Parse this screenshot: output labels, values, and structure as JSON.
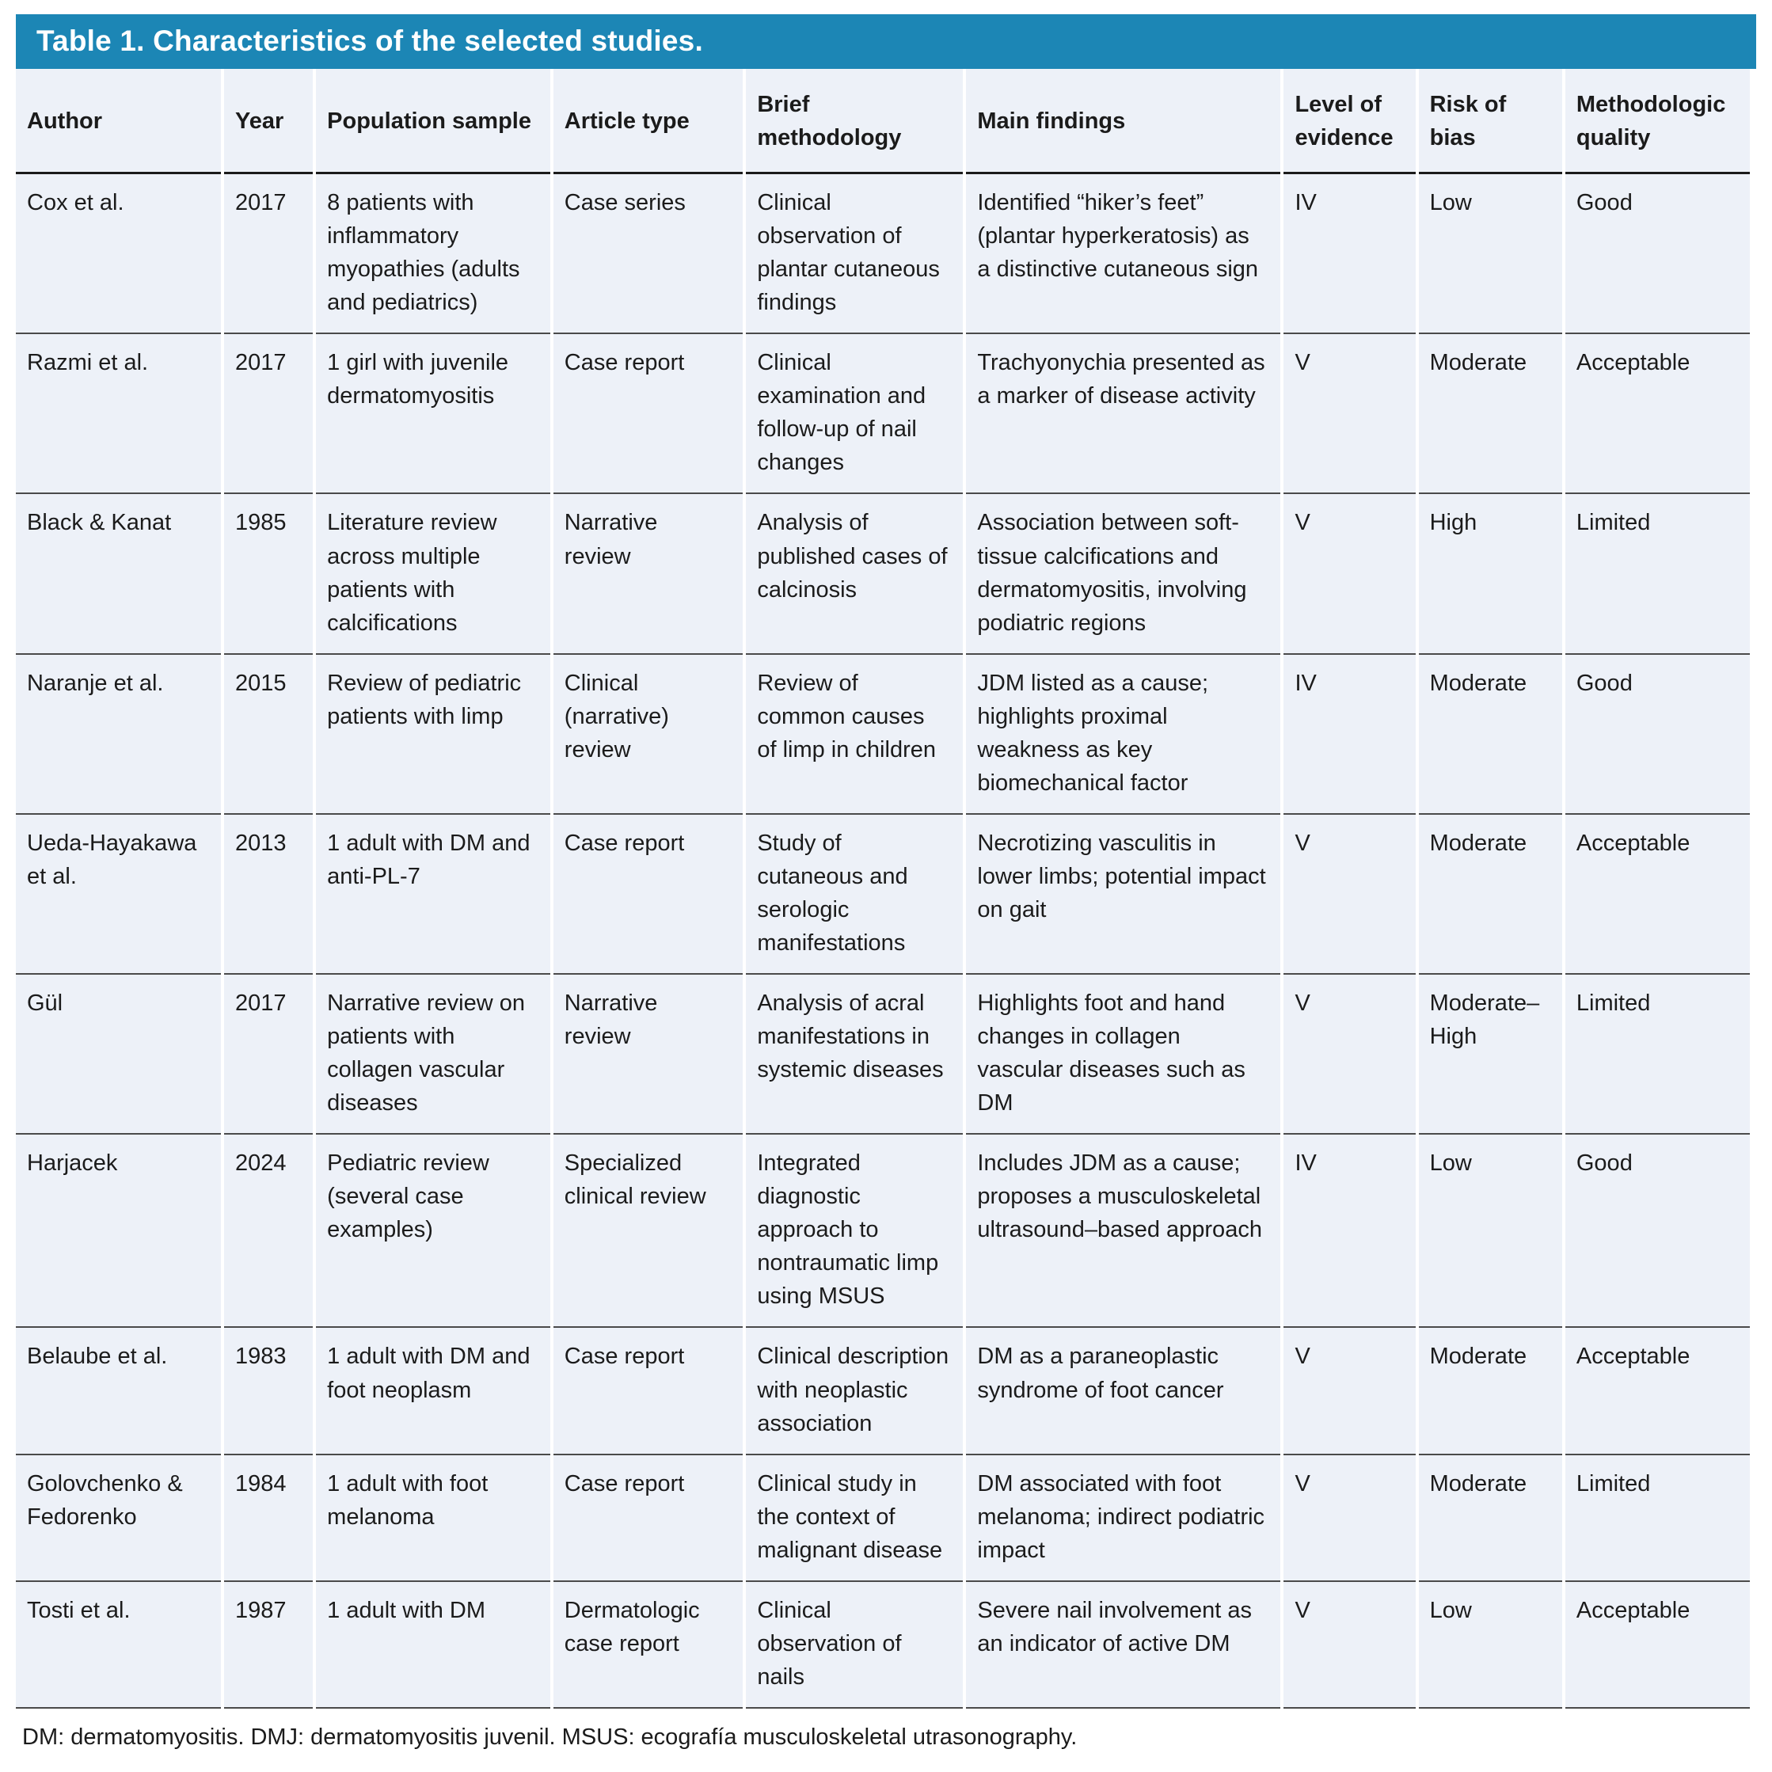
{
  "table": {
    "title": "Table 1. Characteristics of the selected studies.",
    "columns": [
      "Author",
      "Year",
      "Population sample",
      "Article type",
      "Brief methodology",
      "Main findings",
      "Level of evidence",
      "Risk of bias",
      "Methodologic quality"
    ],
    "rows": [
      {
        "author": "Cox et al.",
        "year": "2017",
        "population": "8 patients with inflammatory myopathies (adults and pediatrics)",
        "article_type": "Case series",
        "methodology": "Clinical observation of plantar cutaneous findings",
        "findings": "Identified “hiker’s feet” (plantar hyperkeratosis) as a distinctive cutaneous sign",
        "evidence": "IV",
        "bias": "Low",
        "quality": "Good"
      },
      {
        "author": "Razmi et al.",
        "year": "2017",
        "population": "1 girl with juvenile dermatomyositis",
        "article_type": "Case report",
        "methodology": "Clinical examination and follow-up of nail changes",
        "findings": "Trachyonychia presented as a marker of disease activity",
        "evidence": "V",
        "bias": "Moderate",
        "quality": "Acceptable"
      },
      {
        "author": "Black & Kanat",
        "year": "1985",
        "population": "Literature review across multiple patients with calcifications",
        "article_type": "Narrative review",
        "methodology": "Analysis of published cases of calcinosis",
        "findings": "Association between soft-tissue calcifications and dermatomyositis, involving podiatric regions",
        "evidence": "V",
        "bias": "High",
        "quality": "Limited"
      },
      {
        "author": "Naranje et al.",
        "year": "2015",
        "population": "Review of pediatric patients with limp",
        "article_type": "Clinical (narrative) review",
        "methodology": "Review of common causes of limp in children",
        "findings": "JDM listed as a cause; highlights proximal weakness as key biomechanical factor",
        "evidence": "IV",
        "bias": "Moderate",
        "quality": "Good"
      },
      {
        "author": "Ueda-Hayakawa et al.",
        "year": "2013",
        "population": "1 adult with DM and anti-PL-7",
        "article_type": "Case report",
        "methodology": "Study of cutaneous and serologic manifestations",
        "findings": "Necrotizing vasculitis in lower limbs; potential impact on gait",
        "evidence": "V",
        "bias": "Moderate",
        "quality": "Acceptable"
      },
      {
        "author": "Gül",
        "year": "2017",
        "population": "Narrative review on patients with collagen vascular diseases",
        "article_type": "Narrative review",
        "methodology": "Analysis of acral manifestations in systemic diseases",
        "findings": "Highlights foot and hand changes in collagen vascular diseases such as DM",
        "evidence": "V",
        "bias": "Moderate–High",
        "quality": "Limited"
      },
      {
        "author": "Harjacek",
        "year": "2024",
        "population": "Pediatric review (several case examples)",
        "article_type": "Specialized clinical review",
        "methodology": "Integrated diagnostic approach to nontraumatic limp using MSUS",
        "findings": "Includes JDM as a cause; proposes a musculoskeletal ultrasound–based approach",
        "evidence": "IV",
        "bias": "Low",
        "quality": "Good"
      },
      {
        "author": "Belaube et al.",
        "year": "1983",
        "population": "1 adult with DM and foot neoplasm",
        "article_type": "Case report",
        "methodology": "Clinical description with neoplastic association",
        "findings": "DM as a paraneoplastic syndrome of foot cancer",
        "evidence": "V",
        "bias": "Moderate",
        "quality": "Acceptable"
      },
      {
        "author": "Golovchenko & Fedorenko",
        "year": "1984",
        "population": "1 adult with foot melanoma",
        "article_type": "Case report",
        "methodology": "Clinical study in the context of malignant disease",
        "findings": "DM associated with foot melanoma; indirect podiatric impact",
        "evidence": "V",
        "bias": "Moderate",
        "quality": "Limited"
      },
      {
        "author": "Tosti et al.",
        "year": "1987",
        "population": "1 adult with DM",
        "article_type": "Dermatologic case report",
        "methodology": "Clinical observation of nails",
        "findings": "Severe nail involvement as an indicator of active DM",
        "evidence": "V",
        "bias": "Low",
        "quality": "Acceptable"
      }
    ],
    "footnote": "DM: dermatomyositis. DMJ: dermatomyositis juvenil. MSUS: ecografía musculoskeletal utrasonography."
  },
  "colors": {
    "title_bar_bg": "#1c86b5",
    "title_text": "#ffffff",
    "cell_bg": "#edf1f8",
    "row_divider": "#4a4a4a",
    "header_divider": "#1a1a1a",
    "body_text": "#1b1b1b"
  }
}
